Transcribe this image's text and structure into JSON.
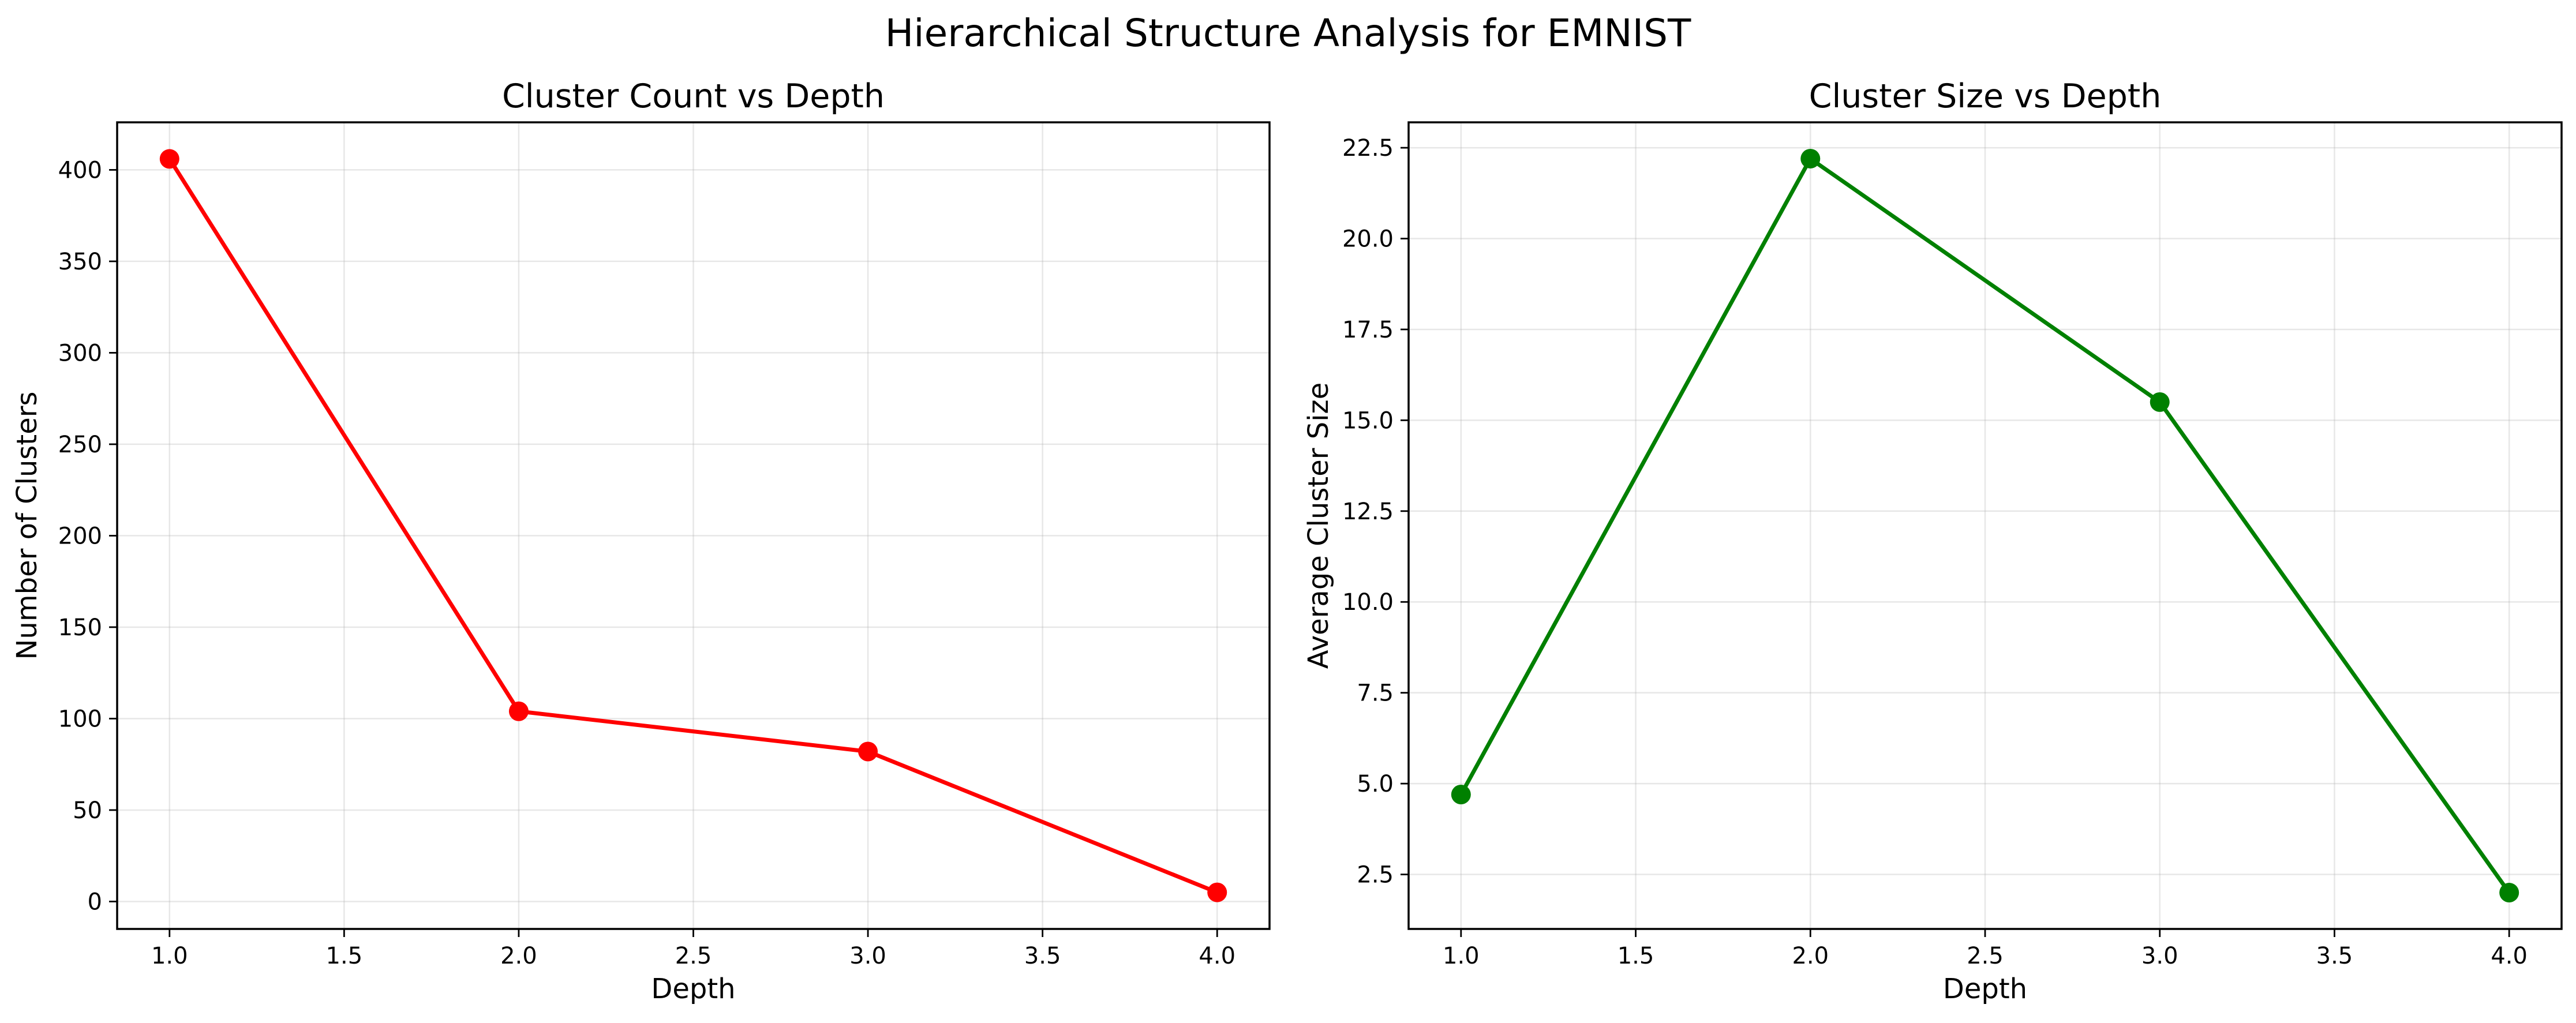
{
  "figure": {
    "title": "Hierarchical Structure Analysis for EMNIST"
  },
  "chart_data": [
    {
      "type": "line",
      "title": "Cluster Count vs Depth",
      "xlabel": "Depth",
      "ylabel": "Number of Clusters",
      "x": [
        1.0,
        2.0,
        3.0,
        4.0
      ],
      "series": [
        {
          "values": [
            406,
            104,
            82,
            5
          ],
          "color": "#ff0000"
        }
      ],
      "xlim": [
        0.85,
        4.15
      ],
      "ylim": [
        -15,
        426
      ],
      "xticks": [
        1.0,
        1.5,
        2.0,
        2.5,
        3.0,
        3.5,
        4.0
      ],
      "xtick_labels": [
        "1.0",
        "1.5",
        "2.0",
        "2.5",
        "3.0",
        "3.5",
        "4.0"
      ],
      "yticks": [
        0,
        50,
        100,
        150,
        200,
        250,
        300,
        350,
        400
      ],
      "ytick_labels": [
        "0",
        "50",
        "100",
        "150",
        "200",
        "250",
        "300",
        "350",
        "400"
      ],
      "grid": true,
      "markers": "circle"
    },
    {
      "type": "line",
      "title": "Cluster Size vs Depth",
      "xlabel": "Depth",
      "ylabel": "Average Cluster Size",
      "x": [
        1.0,
        2.0,
        3.0,
        4.0
      ],
      "series": [
        {
          "values": [
            4.7,
            22.2,
            15.5,
            2.0
          ],
          "color": "#008000"
        }
      ],
      "xlim": [
        0.85,
        4.15
      ],
      "ylim": [
        1.0,
        23.2
      ],
      "xticks": [
        1.0,
        1.5,
        2.0,
        2.5,
        3.0,
        3.5,
        4.0
      ],
      "xtick_labels": [
        "1.0",
        "1.5",
        "2.0",
        "2.5",
        "3.0",
        "3.5",
        "4.0"
      ],
      "yticks": [
        2.5,
        5.0,
        7.5,
        10.0,
        12.5,
        15.0,
        17.5,
        20.0,
        22.5
      ],
      "ytick_labels": [
        "2.5",
        "5.0",
        "7.5",
        "10.0",
        "12.5",
        "15.0",
        "17.5",
        "20.0",
        "22.5"
      ],
      "grid": true,
      "markers": "circle"
    }
  ]
}
